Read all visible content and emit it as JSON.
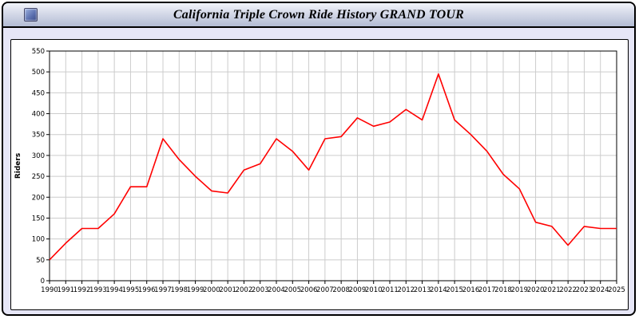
{
  "window": {
    "title": "California Triple Crown Ride History GRAND TOUR"
  },
  "chart_data": {
    "type": "line",
    "title": "California Triple Crown Ride History GRAND TOUR",
    "xlabel": "",
    "ylabel": "Riders",
    "ylim": [
      0,
      550
    ],
    "ytick_step": 50,
    "grid": true,
    "legend": "none",
    "line_color": "#ff0000",
    "grid_color": "#cccccc",
    "x": [
      1990,
      1991,
      1992,
      1993,
      1994,
      1995,
      1996,
      1997,
      1998,
      1999,
      2000,
      2001,
      2002,
      2003,
      2004,
      2005,
      2006,
      2007,
      2008,
      2009,
      2010,
      2011,
      2012,
      2013,
      2014,
      2015,
      2016,
      2017,
      2018,
      2019,
      2020,
      2021,
      2022,
      2023,
      2024,
      2025
    ],
    "values": [
      50,
      90,
      125,
      125,
      160,
      225,
      225,
      340,
      290,
      250,
      215,
      210,
      265,
      280,
      340,
      310,
      265,
      340,
      345,
      390,
      370,
      380,
      410,
      385,
      495,
      385,
      350,
      310,
      255,
      220,
      140,
      130,
      85,
      130,
      125,
      125
    ]
  }
}
